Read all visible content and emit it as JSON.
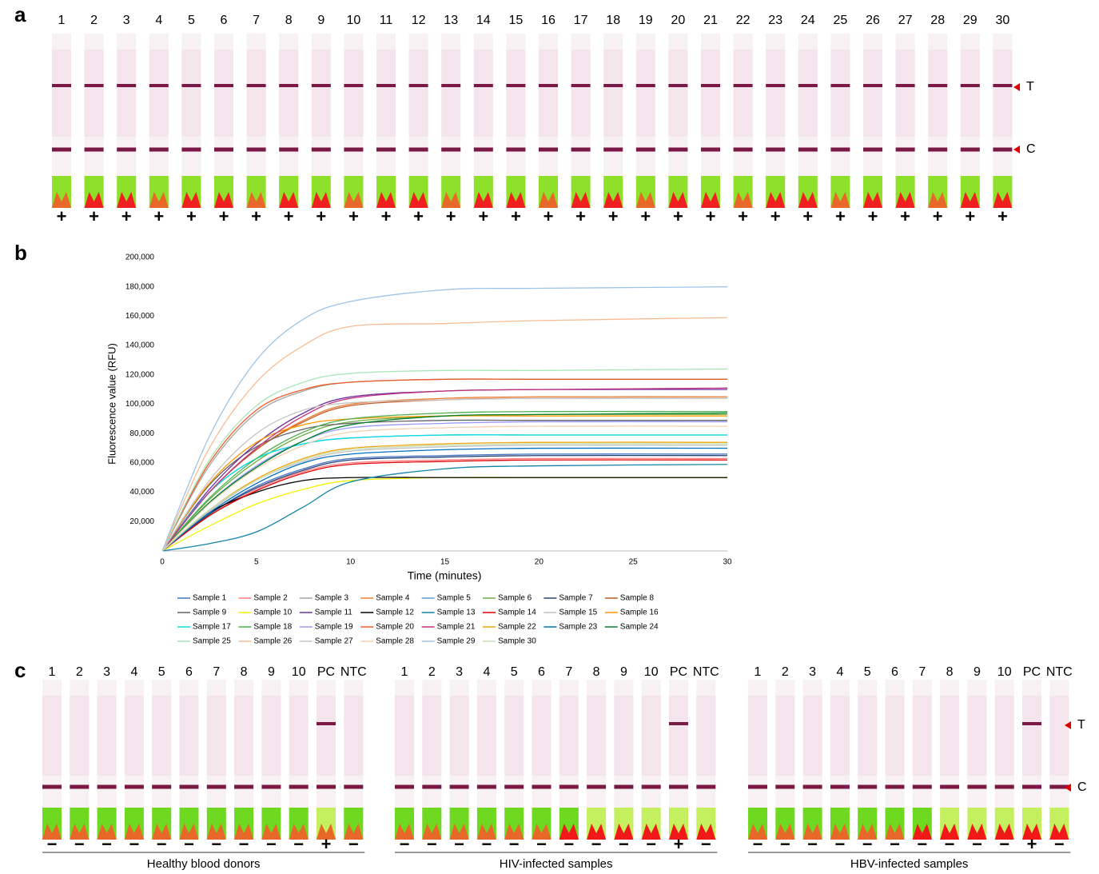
{
  "panel_a": {
    "label": "a",
    "lanes": [
      "1",
      "2",
      "3",
      "4",
      "5",
      "6",
      "7",
      "8",
      "9",
      "10",
      "11",
      "12",
      "13",
      "14",
      "15",
      "16",
      "17",
      "18",
      "19",
      "20",
      "21",
      "22",
      "23",
      "24",
      "25",
      "26",
      "27",
      "28",
      "29",
      "30"
    ],
    "results": [
      "+",
      "+",
      "+",
      "+",
      "+",
      "+",
      "+",
      "+",
      "+",
      "+",
      "+",
      "+",
      "+",
      "+",
      "+",
      "+",
      "+",
      "+",
      "+",
      "+",
      "+",
      "+",
      "+",
      "+",
      "+",
      "+",
      "+",
      "+",
      "+",
      "+"
    ],
    "markers": [
      "T",
      "C"
    ]
  },
  "chart_data": {
    "label": "b",
    "type": "line",
    "x_label": "Time (minutes)",
    "y_label": "Fluorescence value (RFU)",
    "x": [
      0,
      2.5,
      5,
      7.5,
      10,
      15,
      20,
      30
    ],
    "xlim": [
      0,
      30
    ],
    "xticks": [
      0,
      5,
      10,
      15,
      20,
      25,
      30
    ],
    "ylim": [
      0,
      200000
    ],
    "yticks": [
      {
        "value": 20000,
        "label": "20,000"
      },
      {
        "value": 40000,
        "label": "40,000"
      },
      {
        "value": 60000,
        "label": "60,000"
      },
      {
        "value": 80000,
        "label": "80,000"
      },
      {
        "value": 100000,
        "label": "100,000"
      },
      {
        "value": 120000,
        "label": "120,000"
      },
      {
        "value": 140000,
        "label": "140,000"
      },
      {
        "value": 160000,
        "label": "160,000"
      },
      {
        "value": 180000,
        "label": "180,000"
      },
      {
        "value": 200000,
        "label": "200,000"
      }
    ],
    "series": [
      {
        "name": "Sample 1",
        "color": "#4472c4",
        "values": [
          0,
          25000,
          44000,
          56000,
          63000,
          65000,
          66000,
          66000
        ]
      },
      {
        "name": "Sample 2",
        "color": "#ff7c80",
        "values": [
          0,
          24000,
          42000,
          54000,
          60000,
          62000,
          63000,
          63000
        ]
      },
      {
        "name": "Sample 3",
        "color": "#a5a5a5",
        "values": [
          0,
          58000,
          94000,
          109000,
          115000,
          117000,
          117000,
          117000
        ]
      },
      {
        "name": "Sample 4",
        "color": "#ed7d31",
        "values": [
          0,
          40000,
          69000,
          89000,
          100000,
          104000,
          105000,
          105000
        ]
      },
      {
        "name": "Sample 5",
        "color": "#5b9bd5",
        "values": [
          0,
          40000,
          63000,
          73000,
          77000,
          79000,
          79000,
          79000
        ]
      },
      {
        "name": "Sample 6",
        "color": "#70ad47",
        "values": [
          0,
          35000,
          61000,
          79000,
          88000,
          92000,
          93000,
          93000
        ]
      },
      {
        "name": "Sample 7",
        "color": "#264478",
        "values": [
          0,
          25000,
          43000,
          55000,
          62000,
          64000,
          65000,
          65000
        ]
      },
      {
        "name": "Sample 8",
        "color": "#c55a28",
        "values": [
          0,
          40000,
          69000,
          88000,
          99000,
          103000,
          104000,
          104000
        ]
      },
      {
        "name": "Sample 9",
        "color": "#636363",
        "values": [
          0,
          45000,
          71000,
          83000,
          87000,
          89000,
          89000,
          89000
        ]
      },
      {
        "name": "Sample 10",
        "color": "#f2f200",
        "values": [
          0,
          17000,
          32000,
          42000,
          48000,
          50000,
          50000,
          50000
        ]
      },
      {
        "name": "Sample 11",
        "color": "#7030a0",
        "values": [
          0,
          42000,
          73000,
          94000,
          105000,
          109000,
          110000,
          110000
        ]
      },
      {
        "name": "Sample 12",
        "color": "#000000",
        "values": [
          0,
          26000,
          40000,
          48000,
          50000,
          50000,
          50000,
          50000
        ]
      },
      {
        "name": "Sample 13",
        "color": "#1383a8",
        "values": [
          0,
          5000,
          13000,
          30000,
          47000,
          56000,
          58000,
          59000
        ]
      },
      {
        "name": "Sample 14",
        "color": "#e00000",
        "values": [
          0,
          24000,
          41000,
          53000,
          59000,
          61000,
          62000,
          62000
        ]
      },
      {
        "name": "Sample 15",
        "color": "#bfbfbf",
        "values": [
          0,
          27000,
          48000,
          61000,
          68000,
          71000,
          72000,
          72000
        ]
      },
      {
        "name": "Sample 16",
        "color": "#ff9900",
        "values": [
          0,
          46000,
          74000,
          86000,
          90000,
          92000,
          92000,
          92000
        ]
      },
      {
        "name": "Sample 17",
        "color": "#00e0e8",
        "values": [
          0,
          40000,
          63000,
          73000,
          77000,
          79000,
          79000,
          79000
        ]
      },
      {
        "name": "Sample 18",
        "color": "#4caf50",
        "values": [
          0,
          36000,
          63000,
          81000,
          90000,
          94000,
          95000,
          95000
        ]
      },
      {
        "name": "Sample 19",
        "color": "#9999ff",
        "values": [
          0,
          33000,
          58000,
          75000,
          84000,
          87000,
          88000,
          88000
        ]
      },
      {
        "name": "Sample 20",
        "color": "#f05a28",
        "values": [
          0,
          60000,
          96000,
          110000,
          115000,
          117000,
          117000,
          117000
        ]
      },
      {
        "name": "Sample 21",
        "color": "#c0307a",
        "values": [
          0,
          40000,
          70000,
          92000,
          104000,
          109000,
          110000,
          111000
        ]
      },
      {
        "name": "Sample 22",
        "color": "#f0a30a",
        "values": [
          0,
          28000,
          49000,
          63000,
          70000,
          73000,
          74000,
          74000
        ]
      },
      {
        "name": "Sample 23",
        "color": "#0070c0",
        "values": [
          0,
          26000,
          46000,
          60000,
          66000,
          69000,
          70000,
          70000
        ]
      },
      {
        "name": "Sample 24",
        "color": "#00802b",
        "values": [
          0,
          33000,
          57000,
          75000,
          86000,
          92000,
          93000,
          94000
        ]
      },
      {
        "name": "Sample 25",
        "color": "#a8e6b8",
        "values": [
          0,
          62000,
          99000,
          115000,
          121000,
          123000,
          123000,
          124000
        ]
      },
      {
        "name": "Sample 26",
        "color": "#f8bb90",
        "values": [
          0,
          70000,
          115000,
          140000,
          153000,
          155000,
          157000,
          159000
        ]
      },
      {
        "name": "Sample 27",
        "color": "#c9c4c4",
        "values": [
          0,
          48000,
          80000,
          96000,
          101000,
          103000,
          104000,
          104000
        ]
      },
      {
        "name": "Sample 28",
        "color": "#f5d0b0",
        "values": [
          0,
          32000,
          56000,
          72000,
          81000,
          84000,
          85000,
          85000
        ]
      },
      {
        "name": "Sample 29",
        "color": "#9dc3e6",
        "values": [
          0,
          78000,
          130000,
          158000,
          170000,
          178000,
          179000,
          180000
        ]
      },
      {
        "name": "Sample 30",
        "color": "#c5e0b4",
        "values": [
          0,
          28000,
          48000,
          62000,
          69000,
          72000,
          73000,
          73000
        ]
      }
    ]
  },
  "panel_c": {
    "label": "c",
    "markers": [
      "T",
      "C"
    ],
    "groups": [
      {
        "title": "Healthy blood donors",
        "lanes": [
          "1",
          "2",
          "3",
          "4",
          "5",
          "6",
          "7",
          "8",
          "9",
          "10",
          "PC",
          "NTC"
        ],
        "results": [
          "−",
          "−",
          "−",
          "−",
          "−",
          "−",
          "−",
          "−",
          "−",
          "−",
          "+",
          "−"
        ]
      },
      {
        "title": "HIV-infected samples",
        "lanes": [
          "1",
          "2",
          "3",
          "4",
          "5",
          "6",
          "7",
          "8",
          "9",
          "10",
          "PC",
          "NTC"
        ],
        "results": [
          "−",
          "−",
          "−",
          "−",
          "−",
          "−",
          "−",
          "−",
          "−",
          "−",
          "+",
          "−"
        ]
      },
      {
        "title": "HBV-infected samples",
        "lanes": [
          "1",
          "2",
          "3",
          "4",
          "5",
          "6",
          "7",
          "8",
          "9",
          "10",
          "PC",
          "NTC"
        ],
        "results": [
          "−",
          "−",
          "−",
          "−",
          "−",
          "−",
          "−",
          "−",
          "−",
          "−",
          "+",
          "−"
        ]
      }
    ]
  }
}
